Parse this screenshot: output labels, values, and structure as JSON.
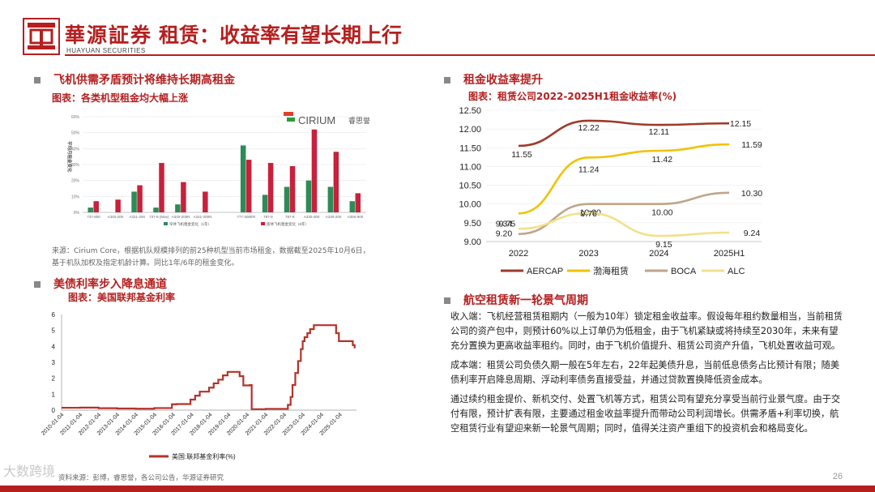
{
  "header": {
    "brand_cn": "華源証券",
    "brand_en": "HUAYUAN SECURITIES",
    "title": "租赁：收益率有望长期上行"
  },
  "left_top": {
    "section_title": "飞机供需矛盾预计将维持长期高租金",
    "figure_title": "图表：各类机型租金均大幅上涨",
    "source": "来源：Cirium Core，根据机队规模排列的前25种机型当前市场租金，数据截至2025年10月6日，基于机队加权及指定机龄计算。同比1年/6年的租金变化。",
    "logo_text": "CIRIUM",
    "logo_sub": "睿思誉"
  },
  "left_bottom": {
    "section_title": "美债利率步入降息通道",
    "figure_title": "图表：美国联邦基金利率"
  },
  "right_top": {
    "section_title": "租金收益率提升",
    "figure_title": "图表：租赁公司2022-2025H1租金收益率(%)"
  },
  "right_bottom": {
    "section_title": "航空租赁新一轮景气周期",
    "paragraphs": [
      "收入端：飞机经营租赁租期内（一般为10年）锁定租金收益率。假设每年租约数量相当，当前租赁公司的资产包中，则预计60%以上订单仍为低租金，由于飞机紧缺或将持续至2030年，未来有望充分置换为更高收益率租约。同时，由于飞机价值提升、租赁公司资产升值，飞机处置收益可观。",
      "成本端：租赁公司负债久期一般在5年左右，22年起美债升息，当前低息债务占比预计有限；随美债利率开启降息周期、浮动利率债务直接受益，并通过贷款置换降低资金成本。",
      "通过续约租金提价、新机交付、处置飞机等方式，租赁公司有望充分享受当前行业景气度。由于交付有限，预计扩表有限，主要通过租金收益率提升而带动公司利润增长。供需矛盾+利率切换，航空租赁行业有望迎来新一轮景气周期；同时，值得关注资产重组下的投资机会和格局变化。"
    ]
  },
  "footer": {
    "source": "资料来源：彭博，睿思誉，各公司公告，华源证券研究",
    "page_number": "26",
    "watermark": "大数跨境"
  },
  "chart_data": [
    {
      "type": "bar",
      "title": "各类机型租金均大幅上涨",
      "ylabel": "平均月租金变化",
      "ylim": [
        0,
        60
      ],
      "yticks": [
        "0%",
        "10%",
        "20%",
        "30%",
        "40%",
        "50%",
        "60%"
      ],
      "categories": [
        "737-800",
        "A320-200",
        "A321-200",
        "737-8 (Max)",
        "A320-200N",
        "A321-200N",
        "",
        "777-300ER",
        "787-9",
        "787-8",
        "A330-300",
        "A330-200",
        "A350-900"
      ],
      "series": [
        {
          "name": "窄体飞机租金变化（1年）",
          "color": "#2e8b57",
          "values": [
            3,
            0,
            13,
            3,
            5,
            0,
            null,
            42,
            11,
            16,
            20,
            16,
            7
          ]
        },
        {
          "name": "宽体飞机租金变化（6年）",
          "color": "#c8213b",
          "values": [
            7,
            8,
            17,
            31,
            19,
            13,
            null,
            33,
            31,
            29,
            52,
            38,
            12
          ]
        }
      ]
    },
    {
      "type": "line",
      "title": "租赁公司2022-2025H1租金收益率(%)",
      "categories": [
        "2022",
        "2023",
        "2024",
        "2025H1"
      ],
      "ylim": [
        9.0,
        12.5
      ],
      "yticks": [
        "12.50",
        "12.00",
        "11.50",
        "11.00",
        "10.50",
        "10.00",
        "9.50",
        "9.00"
      ],
      "series": [
        {
          "name": "AERCAP",
          "color": "#9e3a2a",
          "values": [
            11.55,
            12.22,
            12.11,
            12.15
          ],
          "labels": [
            "11.55",
            "12.22",
            "12.11",
            "12.15"
          ]
        },
        {
          "name": "渤海租赁",
          "color": "#f2c200",
          "values": [
            9.75,
            11.24,
            11.42,
            11.59
          ],
          "labels": [
            "9.75",
            "11.24",
            "11.42",
            "11.59"
          ]
        },
        {
          "name": "BOCA",
          "color": "#bfa58a",
          "values": [
            9.2,
            10.0,
            10.0,
            10.3
          ],
          "labels": [
            "9.20",
            "10.00",
            "10.00",
            "10.30"
          ]
        },
        {
          "name": "ALC",
          "color": "#f3e08a",
          "values": [
            9.34,
            9.76,
            9.15,
            9.24
          ],
          "labels": [
            "9.34",
            "9.76",
            "9.15",
            "9.24"
          ]
        }
      ]
    },
    {
      "type": "line",
      "title": "美国联邦基金利率",
      "ylim": [
        0,
        6
      ],
      "yticks": [
        "0",
        "1",
        "2",
        "3",
        "4",
        "5",
        "6"
      ],
      "xticks": [
        "2010-01-04",
        "2011-01-04",
        "2012-01-04",
        "2013-01-04",
        "2014-01-04",
        "2015-01-04",
        "2016-01-04",
        "2017-01-04",
        "2018-01-04",
        "2019-01-04",
        "2020-01-04",
        "2021-01-04",
        "2022-01-04",
        "2023-01-04",
        "2024-01-04",
        "2025-01-04"
      ],
      "series": [
        {
          "name": "美国:联邦基金利率(%)",
          "color": "#b5322a",
          "x": [
            2010.0,
            2011.0,
            2012.0,
            2013.0,
            2014.0,
            2015.0,
            2015.95,
            2016.2,
            2016.95,
            2017.2,
            2017.45,
            2017.95,
            2018.2,
            2018.45,
            2018.7,
            2018.95,
            2019.5,
            2019.6,
            2019.8,
            2020.15,
            2020.25,
            2021.0,
            2022.2,
            2022.35,
            2022.45,
            2022.6,
            2022.75,
            2022.9,
            2023.0,
            2023.1,
            2023.25,
            2023.4,
            2023.6,
            2024.0,
            2024.7,
            2024.8,
            2024.95,
            2025.5,
            2025.7,
            2025.8
          ],
          "values": [
            0.15,
            0.16,
            0.12,
            0.1,
            0.09,
            0.13,
            0.37,
            0.38,
            0.66,
            0.91,
            1.16,
            1.41,
            1.68,
            1.91,
            2.18,
            2.4,
            2.4,
            2.13,
            1.55,
            1.58,
            0.06,
            0.08,
            0.33,
            0.83,
            1.58,
            2.33,
            3.08,
            3.83,
            4.33,
            4.58,
            4.83,
            5.08,
            5.33,
            5.33,
            5.33,
            4.83,
            4.33,
            4.33,
            4.08,
            3.88
          ]
        }
      ]
    }
  ]
}
